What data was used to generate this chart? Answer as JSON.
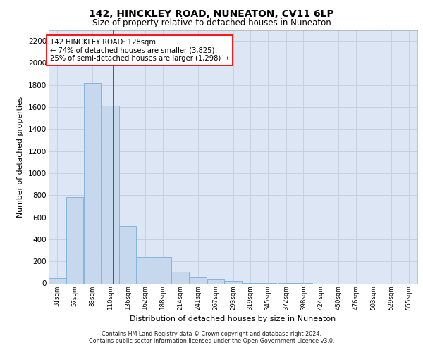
{
  "title": "142, HINCKLEY ROAD, NUNEATON, CV11 6LP",
  "subtitle": "Size of property relative to detached houses in Nuneaton",
  "xlabel": "Distribution of detached houses by size in Nuneaton",
  "ylabel": "Number of detached properties",
  "bin_labels": [
    "31sqm",
    "57sqm",
    "83sqm",
    "110sqm",
    "136sqm",
    "162sqm",
    "188sqm",
    "214sqm",
    "241sqm",
    "267sqm",
    "293sqm",
    "319sqm",
    "345sqm",
    "372sqm",
    "398sqm",
    "424sqm",
    "450sqm",
    "476sqm",
    "503sqm",
    "529sqm",
    "555sqm"
  ],
  "bin_edges": [
    31,
    57,
    83,
    110,
    136,
    162,
    188,
    214,
    241,
    267,
    293,
    319,
    345,
    372,
    398,
    424,
    450,
    476,
    503,
    529,
    555
  ],
  "bin_width": 26,
  "bar_heights": [
    50,
    780,
    1820,
    1610,
    520,
    240,
    240,
    105,
    55,
    35,
    20,
    5,
    2,
    1,
    1,
    0,
    0,
    0,
    0,
    0
  ],
  "bar_color": "#c5d8ee",
  "bar_edgecolor": "#7aadd4",
  "grid_color": "#c8cfe0",
  "background_color": "#dce6f5",
  "red_line_x": 128,
  "annotation_box_text": "142 HINCKLEY ROAD: 128sqm\n← 74% of detached houses are smaller (3,825)\n25% of semi-detached houses are larger (1,298) →",
  "ylim": [
    0,
    2300
  ],
  "yticks": [
    0,
    200,
    400,
    600,
    800,
    1000,
    1200,
    1400,
    1600,
    1800,
    2000,
    2200
  ],
  "footer_line1": "Contains HM Land Registry data © Crown copyright and database right 2024.",
  "footer_line2": "Contains public sector information licensed under the Open Government Licence v3.0."
}
